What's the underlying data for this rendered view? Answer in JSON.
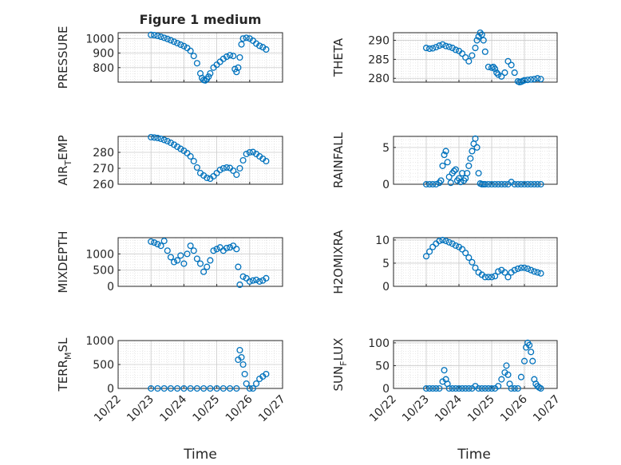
{
  "figure": {
    "title": "Figure 1 medium",
    "xlabel_left": "Time",
    "xlabel_right": "Time",
    "marker_color": "#0072BD",
    "x_ticks": [
      "10/22",
      "10/23",
      "10/24",
      "10/25",
      "10/26",
      "10/27"
    ]
  },
  "chart_data": [
    {
      "type": "scatter",
      "ylabel": "PRESSURE",
      "ylabel_sub": "",
      "xlim": [
        0,
        5
      ],
      "ylim": [
        700,
        1040
      ],
      "yticks": [
        800,
        900,
        1000
      ],
      "grid": true,
      "x": [
        1.0,
        1.1,
        1.2,
        1.3,
        1.4,
        1.5,
        1.6,
        1.7,
        1.8,
        1.9,
        2.0,
        2.1,
        2.2,
        2.3,
        2.4,
        2.5,
        2.55,
        2.6,
        2.65,
        2.7,
        2.75,
        2.8,
        2.9,
        3.0,
        3.1,
        3.2,
        3.3,
        3.4,
        3.5,
        3.55,
        3.6,
        3.65,
        3.7,
        3.75,
        3.8,
        3.9,
        4.0,
        4.1,
        4.2,
        4.3,
        4.4,
        4.5
      ],
      "y": [
        1025,
        1023,
        1018,
        1012,
        1005,
        997,
        988,
        978,
        968,
        958,
        948,
        935,
        915,
        880,
        830,
        760,
        728,
        715,
        712,
        722,
        738,
        760,
        800,
        820,
        840,
        860,
        875,
        885,
        880,
        790,
        770,
        800,
        870,
        960,
        1000,
        1005,
        1000,
        985,
        965,
        950,
        940,
        925
      ]
    },
    {
      "type": "scatter",
      "ylabel": "THETA",
      "ylabel_sub": "",
      "xlim": [
        0,
        5
      ],
      "ylim": [
        279,
        292
      ],
      "yticks": [
        280,
        285,
        290
      ],
      "grid": true,
      "x": [
        1.0,
        1.1,
        1.2,
        1.3,
        1.4,
        1.5,
        1.6,
        1.7,
        1.8,
        1.9,
        2.0,
        2.1,
        2.2,
        2.3,
        2.4,
        2.5,
        2.55,
        2.6,
        2.65,
        2.7,
        2.75,
        2.8,
        2.9,
        3.0,
        3.05,
        3.1,
        3.15,
        3.2,
        3.3,
        3.4,
        3.5,
        3.6,
        3.7,
        3.8,
        3.85,
        3.9,
        3.95,
        4.0,
        4.1,
        4.2,
        4.3,
        4.4,
        4.5
      ],
      "y": [
        288,
        287.8,
        287.9,
        288.2,
        288.6,
        288.9,
        288.5,
        288.3,
        288.0,
        287.5,
        287.2,
        286.5,
        285.5,
        284.5,
        286.0,
        288.0,
        290.0,
        291.0,
        292.0,
        291.5,
        290.0,
        287.0,
        283.0,
        282.8,
        283.0,
        282.5,
        281.5,
        281.0,
        280.5,
        281.5,
        284.5,
        283.5,
        281.5,
        279.2,
        279.0,
        279.1,
        279.3,
        279.5,
        279.6,
        279.7,
        279.8,
        280.0,
        279.8
      ]
    },
    {
      "type": "scatter",
      "ylabel": "AIR",
      "ylabel_sub": "T",
      "ylabel_rest": "EMP",
      "xlim": [
        0,
        5
      ],
      "ylim": [
        260,
        290
      ],
      "yticks": [
        260,
        270,
        280
      ],
      "grid": true,
      "x": [
        1.0,
        1.1,
        1.2,
        1.3,
        1.4,
        1.5,
        1.6,
        1.7,
        1.8,
        1.9,
        2.0,
        2.1,
        2.2,
        2.3,
        2.4,
        2.5,
        2.6,
        2.7,
        2.8,
        2.9,
        3.0,
        3.1,
        3.2,
        3.3,
        3.4,
        3.5,
        3.6,
        3.7,
        3.8,
        3.9,
        4.0,
        4.1,
        4.2,
        4.3,
        4.4,
        4.5
      ],
      "y": [
        289.5,
        289.3,
        289,
        288.5,
        287.8,
        287,
        286,
        284.8,
        283.5,
        282.2,
        281,
        279.5,
        277.5,
        274.5,
        270.5,
        267,
        265.5,
        264,
        263.5,
        265,
        267,
        269,
        270,
        270.5,
        270.2,
        268.5,
        266,
        270,
        275,
        279,
        280,
        280.2,
        279,
        277.5,
        276,
        274.5
      ]
    },
    {
      "type": "scatter",
      "ylabel": "RAINFALL",
      "ylabel_sub": "",
      "xlim": [
        0,
        5
      ],
      "ylim": [
        0,
        6.5
      ],
      "yticks": [
        0,
        5
      ],
      "grid": true,
      "x": [
        1.0,
        1.1,
        1.2,
        1.3,
        1.4,
        1.45,
        1.5,
        1.55,
        1.6,
        1.65,
        1.7,
        1.75,
        1.8,
        1.85,
        1.9,
        1.95,
        2.0,
        2.05,
        2.1,
        2.15,
        2.2,
        2.25,
        2.3,
        2.35,
        2.4,
        2.45,
        2.5,
        2.55,
        2.6,
        2.65,
        2.7,
        2.75,
        2.8,
        2.9,
        3.0,
        3.1,
        3.2,
        3.3,
        3.4,
        3.5,
        3.6,
        3.7,
        3.8,
        3.9,
        4.0,
        4.1,
        4.2,
        4.3,
        4.4,
        4.5
      ],
      "y": [
        0,
        0,
        0,
        0,
        0.2,
        0.5,
        2.5,
        4,
        4.5,
        3,
        1,
        0.2,
        1.5,
        1.8,
        2,
        0.5,
        0.8,
        0.3,
        1.5,
        0.5,
        0.8,
        1.5,
        2.5,
        3.5,
        4.5,
        5.5,
        6.2,
        5,
        1.5,
        0.1,
        0,
        0,
        0,
        0,
        0,
        0,
        0,
        0,
        0,
        0,
        0.3,
        0,
        0,
        0,
        0,
        0,
        0,
        0,
        0,
        0
      ]
    },
    {
      "type": "scatter",
      "ylabel": "MIXDEPTH",
      "ylabel_sub": "",
      "xlim": [
        0,
        5
      ],
      "ylim": [
        0,
        1500
      ],
      "yticks": [
        0,
        500,
        1000
      ],
      "grid": true,
      "x": [
        1.0,
        1.1,
        1.2,
        1.3,
        1.4,
        1.5,
        1.6,
        1.7,
        1.8,
        1.9,
        2.0,
        2.1,
        2.2,
        2.3,
        2.4,
        2.5,
        2.6,
        2.7,
        2.8,
        2.9,
        3.0,
        3.1,
        3.2,
        3.3,
        3.4,
        3.5,
        3.6,
        3.65,
        3.7,
        3.8,
        3.9,
        4.0,
        4.1,
        4.2,
        4.3,
        4.4,
        4.5
      ],
      "y": [
        1380,
        1350,
        1300,
        1250,
        1400,
        1100,
        900,
        750,
        800,
        950,
        700,
        1000,
        1250,
        1100,
        850,
        700,
        450,
        600,
        800,
        1100,
        1150,
        1200,
        1100,
        1180,
        1200,
        1250,
        1150,
        600,
        50,
        300,
        250,
        150,
        180,
        200,
        150,
        180,
        250
      ]
    },
    {
      "type": "scatter",
      "ylabel": "H2OMIXRA",
      "ylabel_sub": "",
      "xlim": [
        0,
        5
      ],
      "ylim": [
        0,
        10.5
      ],
      "yticks": [
        0,
        5,
        10
      ],
      "grid": true,
      "x": [
        1.0,
        1.1,
        1.2,
        1.3,
        1.4,
        1.5,
        1.6,
        1.7,
        1.8,
        1.9,
        2.0,
        2.1,
        2.2,
        2.3,
        2.4,
        2.5,
        2.6,
        2.7,
        2.8,
        2.9,
        3.0,
        3.1,
        3.2,
        3.3,
        3.4,
        3.5,
        3.6,
        3.7,
        3.8,
        3.9,
        4.0,
        4.1,
        4.2,
        4.3,
        4.4,
        4.5
      ],
      "y": [
        6.5,
        7.5,
        8.5,
        9.2,
        9.8,
        10,
        9.8,
        9.5,
        9.2,
        8.8,
        8.5,
        8,
        7.2,
        6.2,
        5.2,
        4,
        3,
        2.5,
        2,
        2,
        2,
        2.2,
        3.2,
        3.5,
        3,
        2,
        3,
        3.5,
        3.8,
        4,
        4,
        3.8,
        3.5,
        3.2,
        3,
        2.8
      ]
    },
    {
      "type": "scatter",
      "ylabel": "TERR",
      "ylabel_sub": "M",
      "ylabel_rest": "SL",
      "xlim": [
        0,
        5
      ],
      "ylim": [
        0,
        1000
      ],
      "yticks": [
        0,
        500,
        1000
      ],
      "grid": true,
      "x": [
        1.0,
        1.2,
        1.4,
        1.6,
        1.8,
        2.0,
        2.2,
        2.4,
        2.6,
        2.8,
        3.0,
        3.2,
        3.4,
        3.6,
        3.65,
        3.7,
        3.75,
        3.8,
        3.85,
        3.9,
        4.0,
        4.1,
        4.2,
        4.3,
        4.4,
        4.5
      ],
      "y": [
        0,
        0,
        0,
        0,
        0,
        0,
        0,
        0,
        0,
        0,
        0,
        0,
        0,
        0,
        600,
        800,
        650,
        500,
        300,
        100,
        0,
        0,
        100,
        200,
        250,
        300
      ]
    },
    {
      "type": "scatter",
      "ylabel": "SUN",
      "ylabel_sub": "F",
      "ylabel_rest": "LUX",
      "xlim": [
        0,
        5
      ],
      "ylim": [
        0,
        105
      ],
      "yticks": [
        0,
        50,
        100
      ],
      "grid": true,
      "x": [
        1.0,
        1.1,
        1.2,
        1.3,
        1.4,
        1.5,
        1.55,
        1.6,
        1.65,
        1.7,
        1.8,
        1.9,
        2.0,
        2.1,
        2.2,
        2.3,
        2.4,
        2.5,
        2.6,
        2.7,
        2.8,
        2.9,
        3.0,
        3.1,
        3.2,
        3.3,
        3.4,
        3.45,
        3.5,
        3.55,
        3.6,
        3.7,
        3.8,
        3.9,
        4.0,
        4.05,
        4.1,
        4.15,
        4.2,
        4.25,
        4.3,
        4.35,
        4.4,
        4.45,
        4.5
      ],
      "y": [
        0,
        0,
        0,
        0,
        0,
        15,
        40,
        20,
        10,
        0,
        0,
        0,
        0,
        0,
        0,
        0,
        0,
        5,
        0,
        0,
        0,
        0,
        0,
        0,
        5,
        20,
        35,
        50,
        30,
        10,
        0,
        0,
        0,
        25,
        60,
        90,
        100,
        95,
        80,
        60,
        20,
        10,
        5,
        2,
        0
      ]
    }
  ]
}
